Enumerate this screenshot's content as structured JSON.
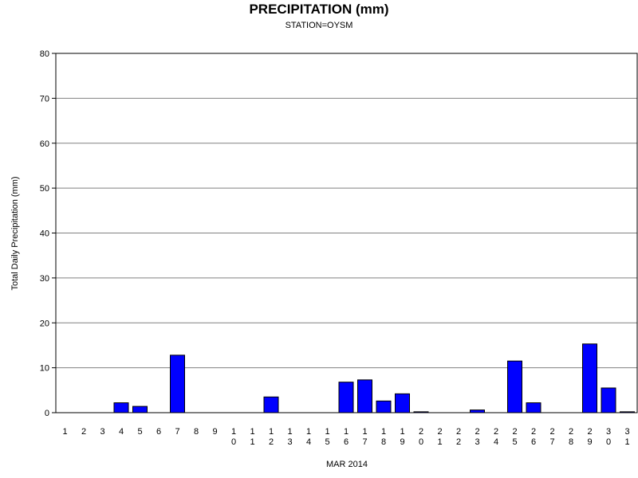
{
  "chart_data": {
    "type": "bar",
    "title": "PRECIPITATION (mm)",
    "subtitle": "STATION=OYSM",
    "xlabel": "MAR 2014",
    "ylabel": "Total Daily Precipitation (mm)",
    "ylim": [
      0,
      80
    ],
    "yticks": [
      0,
      10,
      20,
      30,
      40,
      50,
      60,
      70,
      80
    ],
    "grid": true,
    "bar_color": "#0000ff",
    "categories": [
      "1",
      "2",
      "3",
      "4",
      "5",
      "6",
      "7",
      "8",
      "9",
      "10",
      "11",
      "12",
      "13",
      "14",
      "15",
      "16",
      "17",
      "18",
      "19",
      "20",
      "21",
      "22",
      "23",
      "24",
      "25",
      "26",
      "27",
      "28",
      "29",
      "30",
      "31"
    ],
    "values": [
      0,
      0,
      0,
      2.2,
      1.4,
      0,
      12.8,
      0,
      0,
      0,
      0,
      3.5,
      0,
      0,
      0,
      6.8,
      7.3,
      2.6,
      4.2,
      0.2,
      0,
      0,
      0.6,
      0,
      11.5,
      2.2,
      0,
      0,
      15.3,
      5.5,
      0.2
    ]
  }
}
